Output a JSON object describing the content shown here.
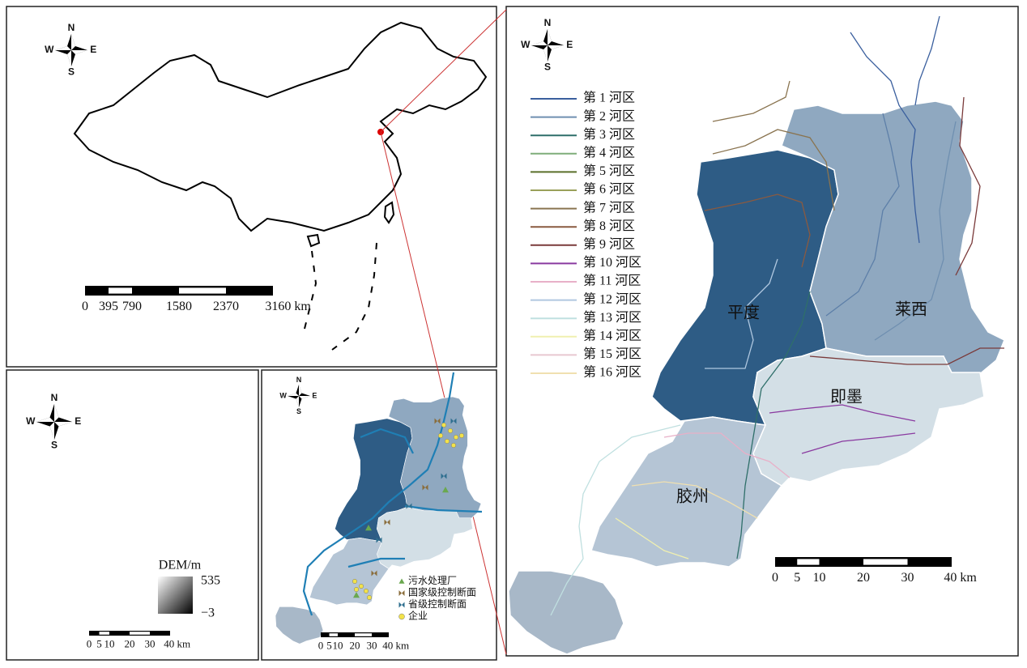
{
  "china_map": {
    "compass": {
      "n": "N",
      "s": "S",
      "w": "W",
      "e": "E"
    },
    "scale_labels": [
      "0",
      "395",
      "790",
      "1580",
      "2370",
      "3160 km"
    ]
  },
  "dem_map": {
    "compass": {
      "n": "N",
      "s": "S",
      "w": "W",
      "e": "E"
    },
    "legend_title": "DEM/m",
    "legend_max": "535",
    "legend_min": "−3",
    "scale_labels": [
      "0",
      "5",
      "10",
      "20",
      "30",
      "40 km"
    ]
  },
  "facility_map": {
    "compass": {
      "n": "N",
      "s": "S",
      "w": "W",
      "e": "E"
    },
    "legend": [
      {
        "label": "污水处理厂",
        "symbol": "triangle",
        "color": "#6aa84f"
      },
      {
        "label": "国家级控制断面",
        "symbol": "bowtie",
        "color": "#8a6d3b"
      },
      {
        "label": "省级控制断面",
        "symbol": "bowtie",
        "color": "#2f6f8f"
      },
      {
        "label": "企业",
        "symbol": "circle",
        "color": "#f2e24a"
      }
    ],
    "scale_labels": [
      "0",
      "5",
      "10",
      "20",
      "30",
      "40 km"
    ]
  },
  "river_map": {
    "compass": {
      "n": "N",
      "s": "S",
      "w": "W",
      "e": "E"
    },
    "legend": [
      {
        "label": "第 1 河区",
        "color": "#3a5f9e"
      },
      {
        "label": "第 2 河区",
        "color": "#6f8fb0"
      },
      {
        "label": "第 3 河区",
        "color": "#2f6f6a"
      },
      {
        "label": "第 4 河区",
        "color": "#7fae7a"
      },
      {
        "label": "第 5 河区",
        "color": "#5a6f2a"
      },
      {
        "label": "第 6 河区",
        "color": "#9aa05a"
      },
      {
        "label": "第 7 河区",
        "color": "#8a7450"
      },
      {
        "label": "第 8 河区",
        "color": "#8a5a40"
      },
      {
        "label": "第 9 河区",
        "color": "#7a3a3a"
      },
      {
        "label": "第 10 河区",
        "color": "#8a3aa0"
      },
      {
        "label": "第 11 河区",
        "color": "#e8b0c8"
      },
      {
        "label": "第 12 河区",
        "color": "#b0c8e0"
      },
      {
        "label": "第 13 河区",
        "color": "#c0e0e0"
      },
      {
        "label": "第 14 河区",
        "color": "#f0f0b0"
      },
      {
        "label": "第 15 河区",
        "color": "#e8c8d0"
      },
      {
        "label": "第 16 河区",
        "color": "#f0e0b0"
      }
    ],
    "regions": [
      "平度",
      "莱西",
      "即墨",
      "胶州"
    ],
    "scale_labels": [
      "0",
      "5",
      "10",
      "20",
      "30",
      "40 km"
    ]
  }
}
